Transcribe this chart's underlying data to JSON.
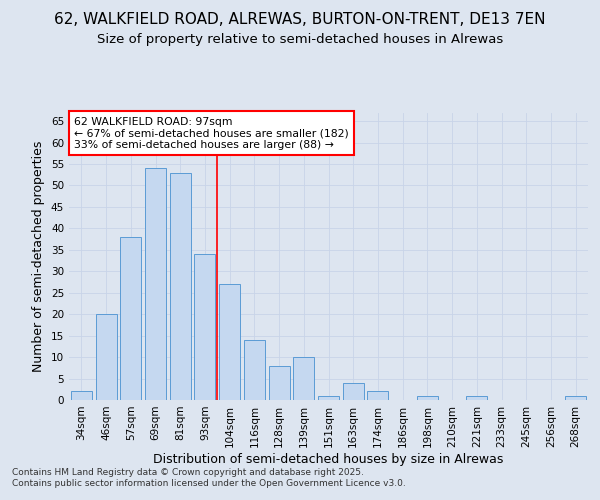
{
  "title_line1": "62, WALKFIELD ROAD, ALREWAS, BURTON-ON-TRENT, DE13 7EN",
  "title_line2": "Size of property relative to semi-detached houses in Alrewas",
  "xlabel": "Distribution of semi-detached houses by size in Alrewas",
  "ylabel": "Number of semi-detached properties",
  "categories": [
    "34sqm",
    "46sqm",
    "57sqm",
    "69sqm",
    "81sqm",
    "93sqm",
    "104sqm",
    "116sqm",
    "128sqm",
    "139sqm",
    "151sqm",
    "163sqm",
    "174sqm",
    "186sqm",
    "198sqm",
    "210sqm",
    "221sqm",
    "233sqm",
    "245sqm",
    "256sqm",
    "268sqm"
  ],
  "values": [
    2,
    20,
    38,
    54,
    53,
    34,
    27,
    14,
    8,
    10,
    1,
    4,
    2,
    0,
    1,
    0,
    1,
    0,
    0,
    0,
    1
  ],
  "bar_color": "#c5d8f0",
  "bar_edge_color": "#5b9bd5",
  "annotation_text": "62 WALKFIELD ROAD: 97sqm\n← 67% of semi-detached houses are smaller (182)\n33% of semi-detached houses are larger (88) →",
  "annotation_box_color": "white",
  "annotation_box_edge_color": "red",
  "vline_x_index": 5.5,
  "vline_color": "red",
  "ylim": [
    0,
    67
  ],
  "yticks": [
    0,
    5,
    10,
    15,
    20,
    25,
    30,
    35,
    40,
    45,
    50,
    55,
    60,
    65
  ],
  "grid_color": "#c8d4e8",
  "background_color": "#dde5f0",
  "footer_text": "Contains HM Land Registry data © Crown copyright and database right 2025.\nContains public sector information licensed under the Open Government Licence v3.0.",
  "title_fontsize": 11,
  "subtitle_fontsize": 9.5,
  "axis_label_fontsize": 9,
  "tick_fontsize": 7.5,
  "footer_fontsize": 6.5
}
